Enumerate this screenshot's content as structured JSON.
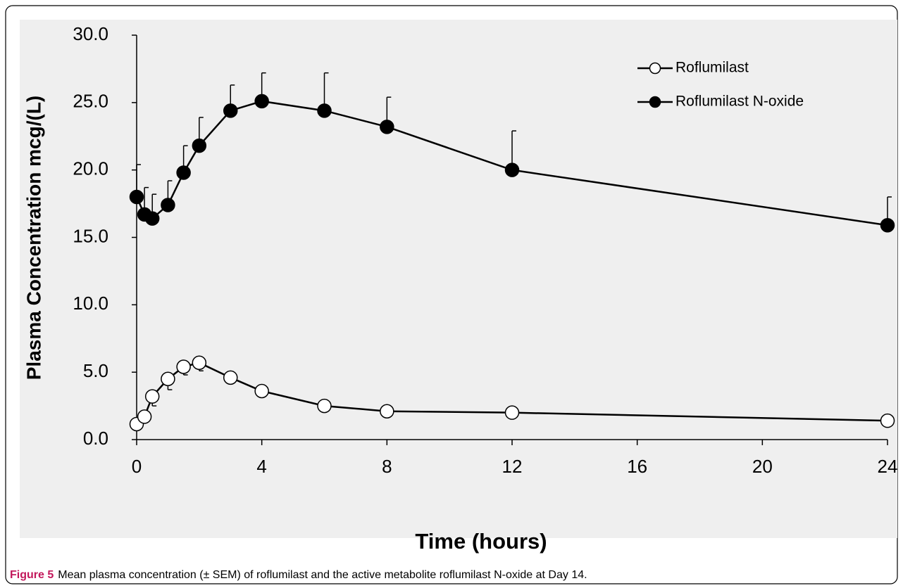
{
  "chart_data": {
    "type": "line",
    "y_label": "Plasma Concentration mcg/(L)",
    "x_label": "Time (hours)",
    "x": [
      0,
      0.25,
      0.5,
      1,
      1.5,
      2,
      3,
      4,
      6,
      8,
      12,
      24
    ],
    "series": [
      {
        "name": "Roflumilast",
        "color": "#000000",
        "marker": "open",
        "error_direction": "down",
        "values": [
          1.15,
          1.7,
          3.2,
          4.5,
          5.4,
          5.7,
          4.6,
          3.6,
          2.5,
          2.1,
          2.0,
          1.4
        ],
        "errors": [
          0.2,
          0.3,
          0.7,
          0.8,
          0.6,
          0.6,
          0.3,
          0.2,
          0.2,
          0.1,
          0.1,
          0.1
        ]
      },
      {
        "name": "Roflumilast N-oxide",
        "color": "#000000",
        "marker": "filled",
        "error_direction": "up",
        "values": [
          18.0,
          16.7,
          16.4,
          17.4,
          19.8,
          21.8,
          24.4,
          25.1,
          24.4,
          23.2,
          20.0,
          15.9
        ],
        "errors": [
          2.4,
          2.0,
          1.8,
          1.8,
          2.0,
          2.1,
          1.9,
          2.1,
          2.8,
          2.2,
          2.9,
          2.1
        ]
      }
    ],
    "xlim": [
      0,
      24
    ],
    "xticks": [
      0,
      4,
      8,
      12,
      16,
      20,
      24
    ],
    "ylim": [
      0,
      30
    ],
    "yticks": [
      {
        "value": 0,
        "label": "0.0"
      },
      {
        "value": 5,
        "label": "5.0"
      },
      {
        "value": 10,
        "label": "10.0"
      },
      {
        "value": 15,
        "label": "15.0"
      },
      {
        "value": 20,
        "label": "20.0"
      },
      {
        "value": 25,
        "label": "25.0"
      },
      {
        "value": 30,
        "label": "30.0"
      }
    ],
    "legend": "top-right"
  },
  "caption": {
    "label": "Figure 5",
    "text": "Mean plasma concentration (± SEM) of roflumilast and the active metabolite roflumilast N-oxide at Day 14."
  }
}
